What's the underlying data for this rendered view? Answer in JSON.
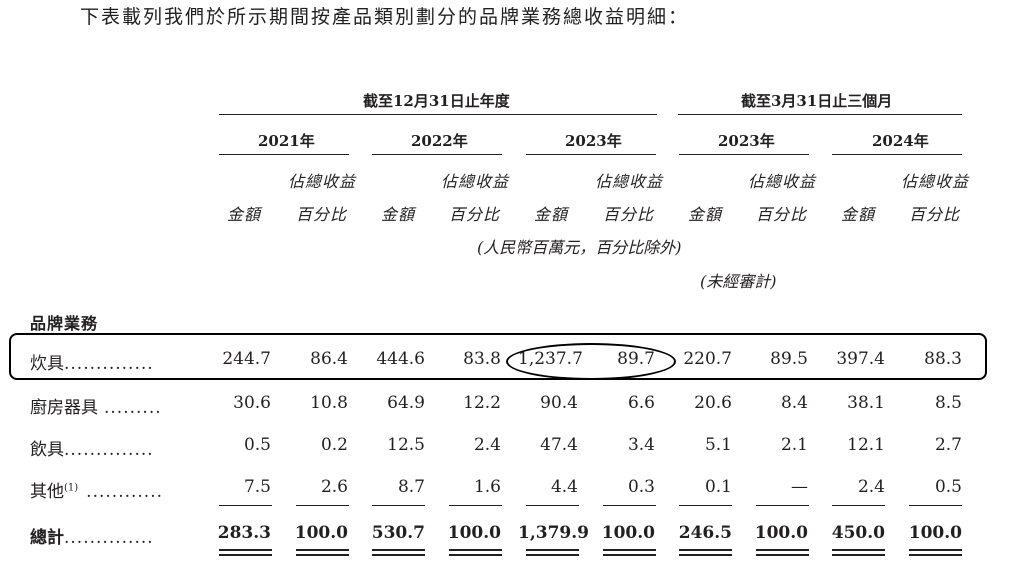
{
  "intro": "下表載列我們於所示期間按產品類別劃分的品牌業務總收益明細：",
  "header": {
    "group_annual": "截至12月31日止年度",
    "group_quarter": "截至3月31日止三個月",
    "years": [
      "2021年",
      "2022年",
      "2023年",
      "2023年",
      "2024年"
    ],
    "col_amount": "金額",
    "col_pct_line1": "佔總收益",
    "col_pct_line2": "百分比",
    "unit_note": "(人民幣百萬元，百分比除外)",
    "unaudited_note": "(未經審計)"
  },
  "section_title": "品牌業務",
  "rows": [
    {
      "label": "炊具",
      "dots": "..............",
      "values": [
        "244.7",
        "86.4",
        "444.6",
        "83.8",
        "1,237.7",
        "89.7",
        "220.7",
        "89.5",
        "397.4",
        "88.3"
      ]
    },
    {
      "label": "廚房器具",
      "dots": ".........",
      "values": [
        "30.6",
        "10.8",
        "64.9",
        "12.2",
        "90.4",
        "6.6",
        "20.6",
        "8.4",
        "38.1",
        "8.5"
      ]
    },
    {
      "label": "飲具",
      "dots": "..............",
      "values": [
        "0.5",
        "0.2",
        "12.5",
        "2.4",
        "47.4",
        "3.4",
        "5.1",
        "2.1",
        "12.1",
        "2.7"
      ]
    },
    {
      "label": "其他",
      "sup": "(1)",
      "dots": "............",
      "values": [
        "7.5",
        "2.6",
        "8.7",
        "1.6",
        "4.4",
        "0.3",
        "0.1",
        "—",
        "2.4",
        "0.5"
      ]
    }
  ],
  "total": {
    "label": "總計",
    "dots": "..............",
    "values": [
      "283.3",
      "100.0",
      "530.7",
      "100.0",
      "1,379.9",
      "100.0",
      "246.5",
      "100.0",
      "450.0",
      "100.0"
    ]
  }
}
